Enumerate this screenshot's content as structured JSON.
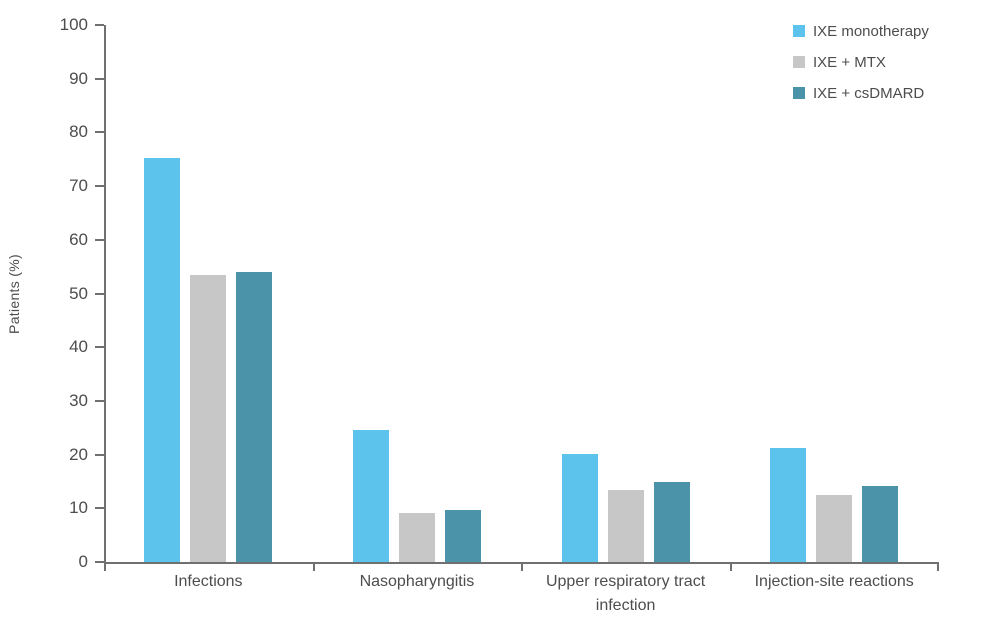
{
  "chart": {
    "background": "#ffffff",
    "axis_color": "#707070",
    "text_color": "#4d4d4d"
  },
  "chart_data": {
    "type": "bar",
    "title": "",
    "xlabel": "",
    "ylabel": "Patients (%)",
    "ylim": [
      0,
      100
    ],
    "ytick_step": 10,
    "ytick_labels": [
      "0",
      "10",
      "20",
      "30",
      "40",
      "50",
      "60",
      "70",
      "80",
      "90",
      "100"
    ],
    "grid": false,
    "legend_position": "top-right",
    "categories": [
      "Infections",
      "Nasopharyngitis",
      "Upper respiratory tract infection",
      "Injection-site reactions"
    ],
    "series": [
      {
        "name": "IXE monotherapy",
        "color": "#5bc3ec",
        "values": [
          75.3,
          24.6,
          20.1,
          21.2
        ]
      },
      {
        "name": "IXE + MTX",
        "color": "#c7c7c7",
        "values": [
          53.4,
          9.1,
          13.4,
          12.4
        ]
      },
      {
        "name": "IXE + csDMARD",
        "color": "#4a93a8",
        "values": [
          54.0,
          9.7,
          14.9,
          14.1
        ]
      }
    ]
  }
}
